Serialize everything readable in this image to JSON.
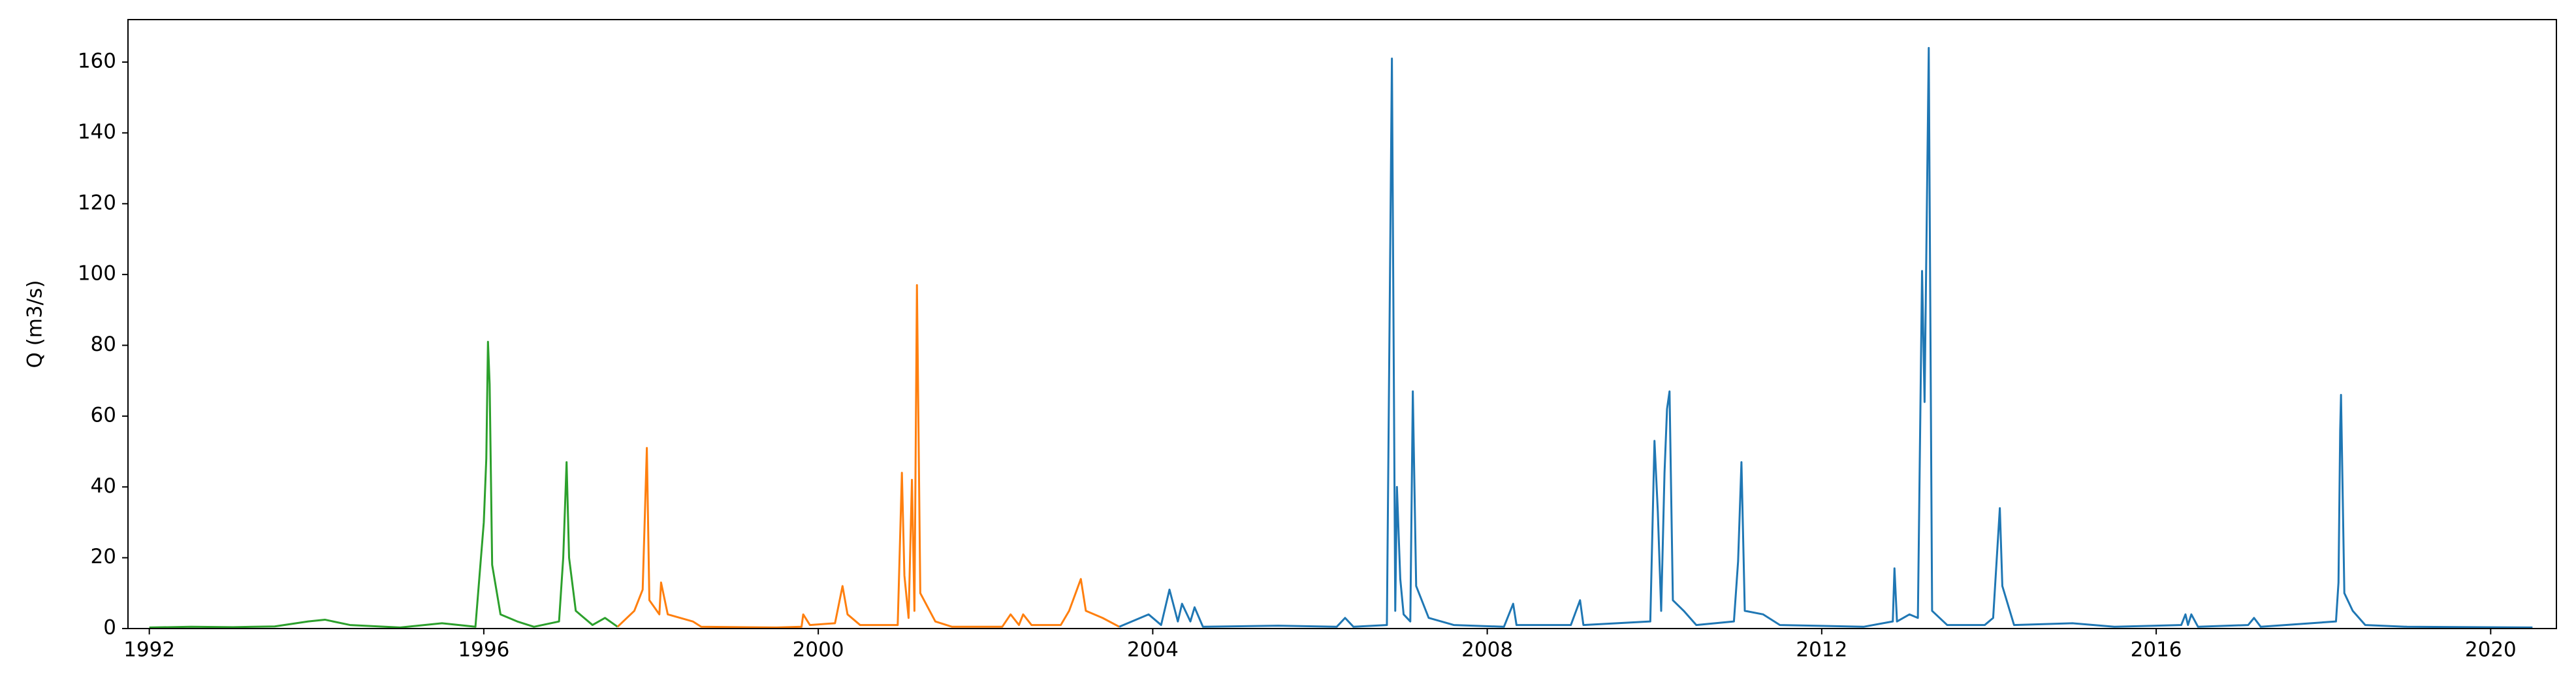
{
  "chart_data": {
    "type": "line",
    "ylabel": "Q (m3/s)",
    "xlim": [
      1991.745,
      2020.786
    ],
    "xticks": [
      1992,
      1996,
      2000,
      2004,
      2008,
      2012,
      2016,
      2020
    ],
    "ylim": [
      0,
      172
    ],
    "yticks": [
      0,
      20,
      40,
      60,
      80,
      100,
      120,
      140,
      160
    ],
    "grid": false,
    "series": [
      {
        "color": "#2ca02c",
        "x": [
          1992.0,
          1992.5,
          1993.0,
          1993.5,
          1993.9,
          1994.1,
          1994.4,
          1995.0,
          1995.5,
          1995.9,
          1996.0,
          1996.03,
          1996.05,
          1996.07,
          1996.1,
          1996.2,
          1996.4,
          1996.6,
          1996.9,
          1996.95,
          1996.99,
          1997.02,
          1997.1,
          1997.3,
          1997.45,
          1997.6
        ],
        "values": [
          0.3,
          0.5,
          0.4,
          0.6,
          2,
          2.5,
          1,
          0.3,
          1.5,
          0.5,
          30,
          48,
          81,
          69,
          18,
          4,
          2,
          0.5,
          2,
          20,
          47,
          20,
          5,
          1,
          3,
          0.5
        ]
      },
      {
        "color": "#ff7f0e",
        "x": [
          1997.6,
          1997.8,
          1997.9,
          1997.95,
          1997.98,
          1998.1,
          1998.12,
          1998.2,
          1998.5,
          1998.6,
          1999.5,
          1999.8,
          1999.82,
          1999.9,
          2000.2,
          2000.29,
          2000.35,
          2000.5,
          2000.95,
          2001.0,
          2001.03,
          2001.08,
          2001.12,
          2001.15,
          2001.18,
          2001.22,
          2001.4,
          2001.6,
          2002.2,
          2002.3,
          2002.4,
          2002.45,
          2002.55,
          2002.9,
          2003.0,
          2003.14,
          2003.2,
          2003.4,
          2003.6
        ],
        "values": [
          0.5,
          5,
          11,
          51,
          8,
          4,
          13,
          4,
          2,
          0.5,
          0.3,
          0.5,
          4,
          1,
          1.5,
          12,
          4,
          1,
          1,
          44,
          15,
          3,
          42,
          5,
          97,
          10,
          2,
          0.5,
          0.5,
          4,
          1,
          4,
          1,
          1,
          5,
          14,
          5,
          3,
          0.5
        ]
      },
      {
        "color": "#1f77b4",
        "x": [
          2003.6,
          2003.95,
          2004.1,
          2004.2,
          2004.3,
          2004.35,
          2004.45,
          2004.5,
          2004.6,
          2005.5,
          2006.2,
          2006.3,
          2006.4,
          2006.8,
          2006.86,
          2006.9,
          2006.92,
          2006.96,
          2007.0,
          2007.08,
          2007.11,
          2007.15,
          2007.3,
          2007.6,
          2008.2,
          2008.31,
          2008.35,
          2009.0,
          2009.11,
          2009.15,
          2009.95,
          2010.0,
          2010.04,
          2010.08,
          2010.12,
          2010.15,
          2010.18,
          2010.22,
          2010.35,
          2010.5,
          2010.95,
          2011.0,
          2011.04,
          2011.08,
          2011.3,
          2011.5,
          2012.5,
          2012.85,
          2012.87,
          2012.9,
          2013.05,
          2013.15,
          2013.2,
          2013.23,
          2013.28,
          2013.32,
          2013.5,
          2013.95,
          2014.05,
          2014.13,
          2014.16,
          2014.3,
          2015.0,
          2015.5,
          2016.3,
          2016.35,
          2016.38,
          2016.42,
          2016.5,
          2017.1,
          2017.17,
          2017.25,
          2018.15,
          2018.18,
          2018.2,
          2018.21,
          2018.25,
          2018.35,
          2018.5,
          2019.0,
          2020.5
        ],
        "values": [
          0.5,
          4,
          1,
          11,
          2,
          7,
          2,
          6,
          0.5,
          0.8,
          0.5,
          3,
          0.5,
          1,
          161,
          5,
          40,
          14,
          4,
          2,
          67,
          12,
          3,
          1,
          0.5,
          7,
          1,
          1,
          8,
          1,
          2,
          53,
          33,
          5,
          44,
          62,
          67,
          8,
          5,
          1,
          2,
          19,
          47,
          5,
          4,
          1,
          0.5,
          2,
          17,
          2,
          4,
          3,
          101,
          64,
          164,
          5,
          1,
          1,
          3,
          34,
          12,
          1,
          1.5,
          0.5,
          1,
          4,
          1,
          4,
          0.5,
          1,
          3,
          0.5,
          2,
          13,
          56,
          66,
          10,
          5,
          1,
          0.5,
          0.3
        ]
      }
    ]
  }
}
